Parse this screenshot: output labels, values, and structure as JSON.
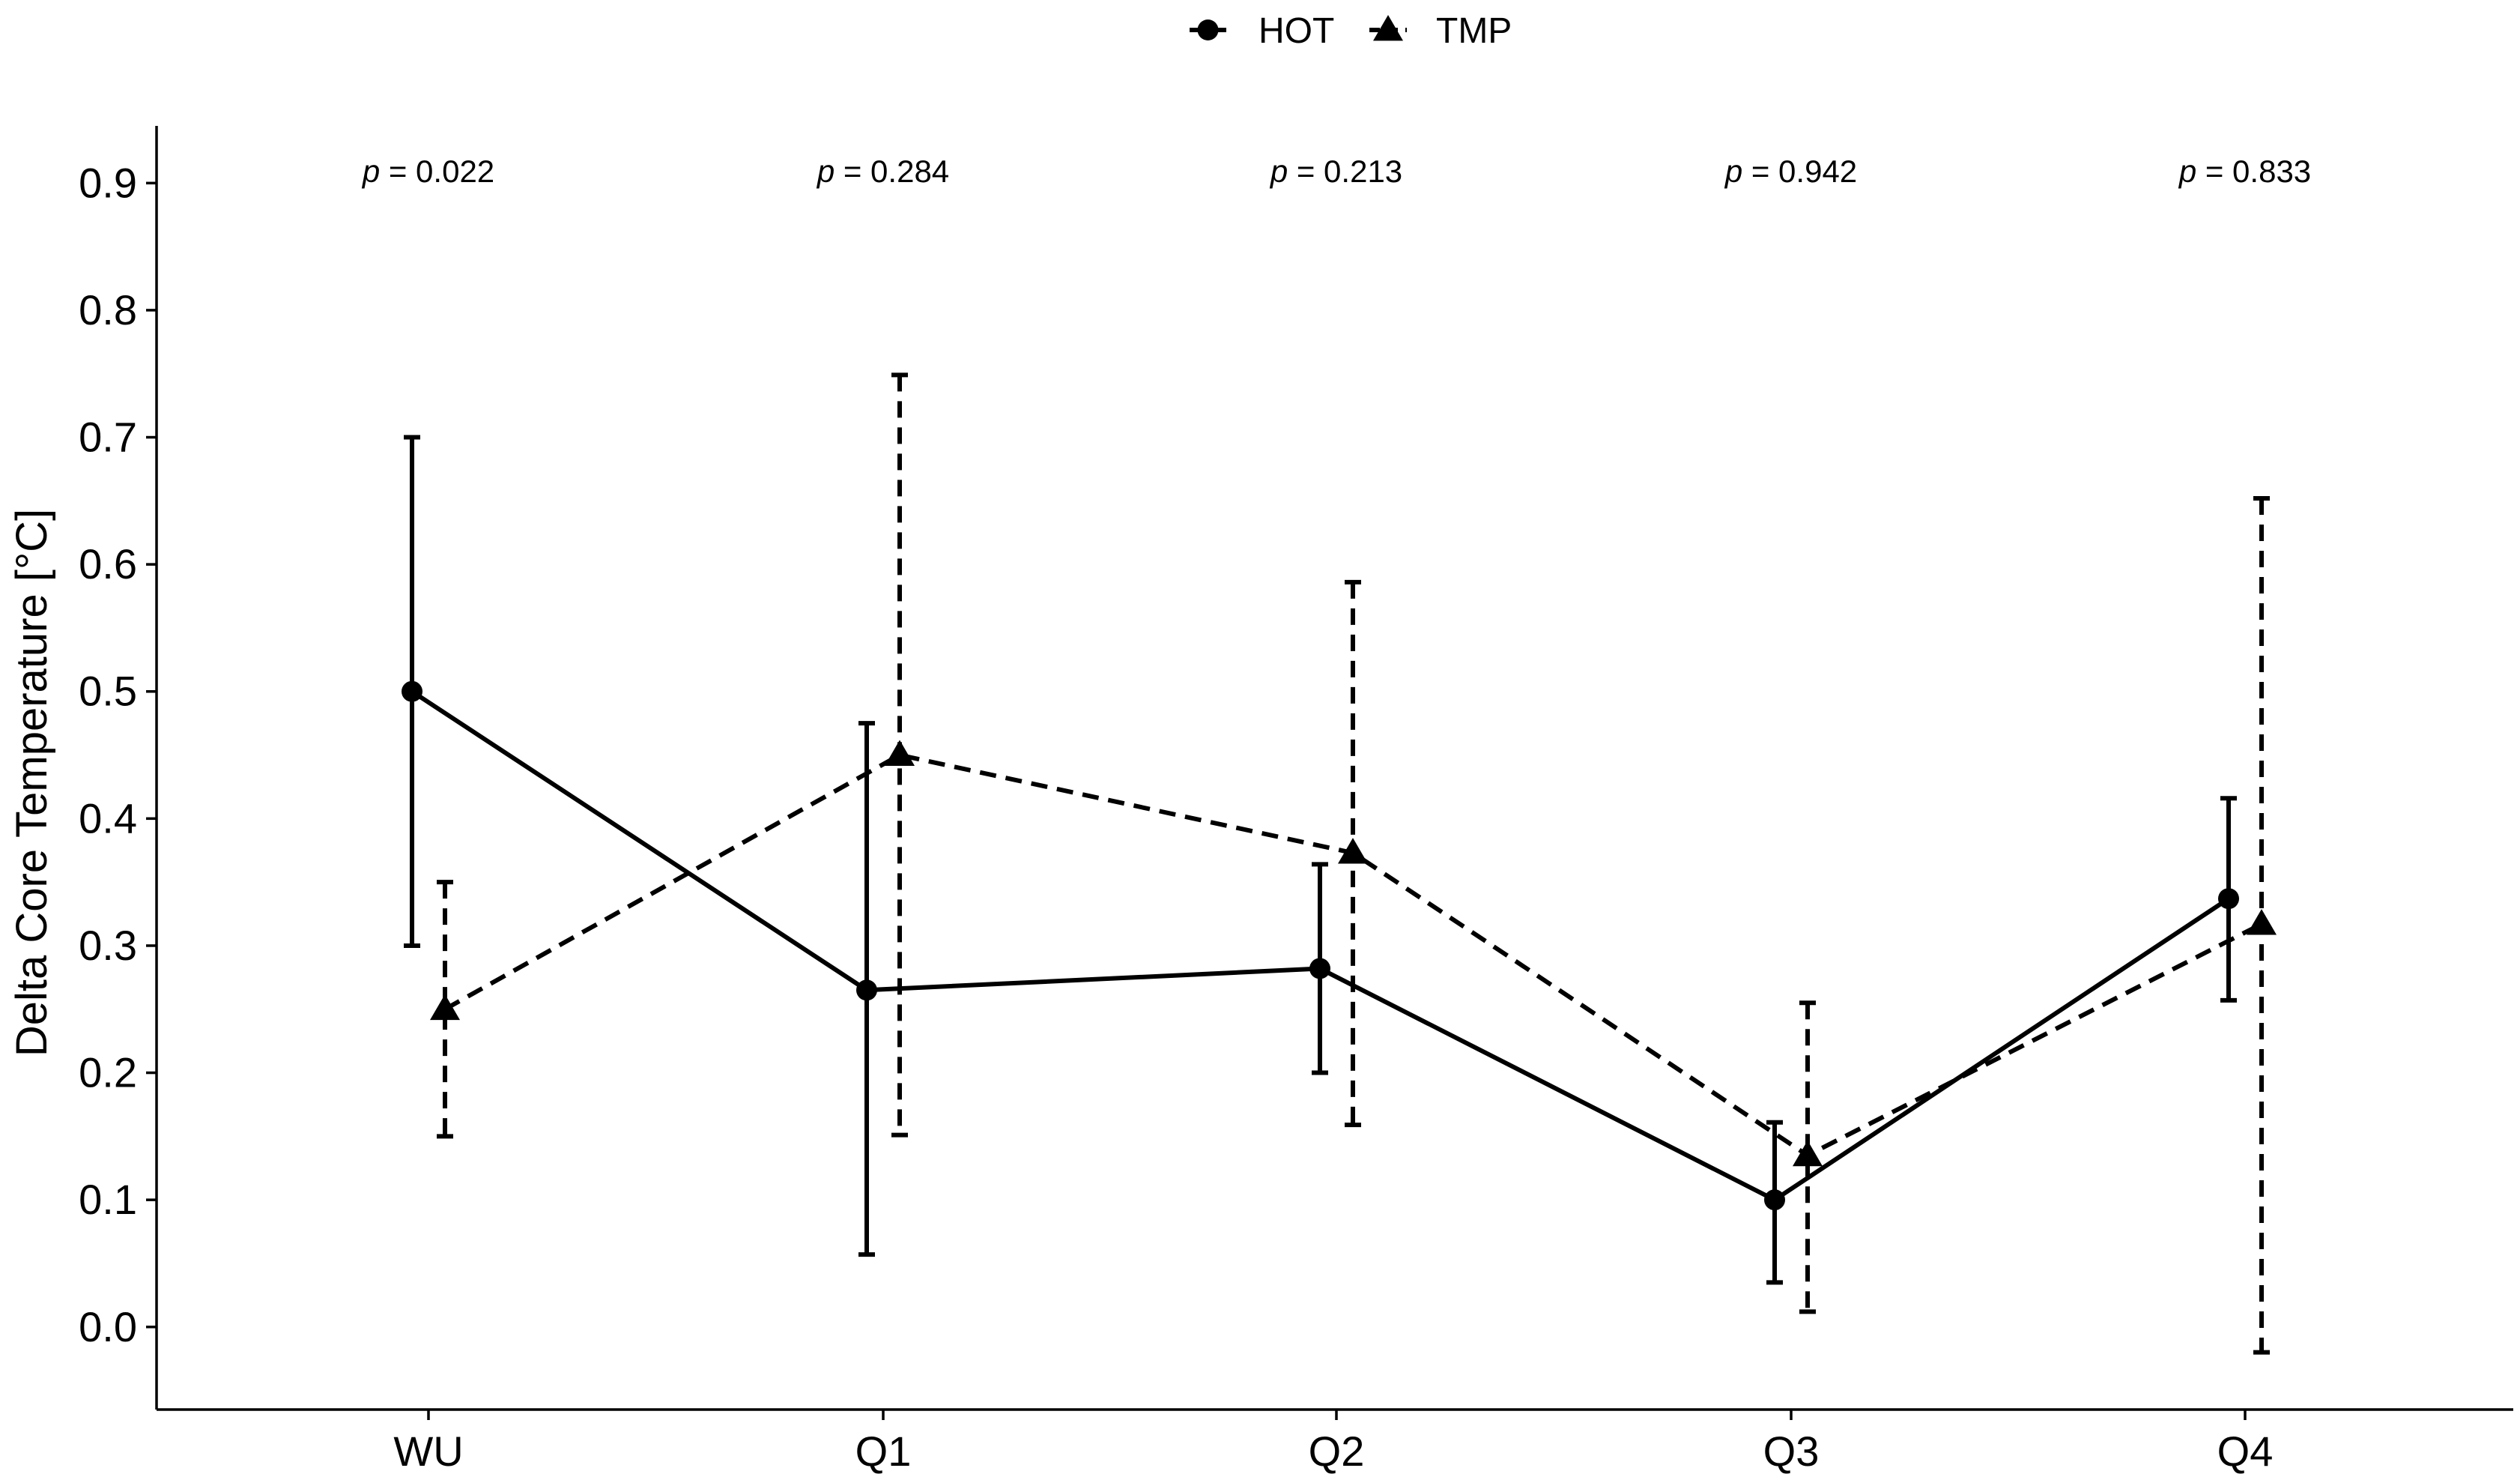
{
  "chart_data": {
    "type": "line",
    "title": "",
    "xlabel": "",
    "ylabel": "Delta Core Temperature [°C]",
    "categories": [
      "WU",
      "Q1",
      "Q2",
      "Q3",
      "Q4"
    ],
    "ylim": [
      -0.065,
      0.945
    ],
    "yticks": [
      "0.0",
      "0.1",
      "0.2",
      "0.3",
      "0.4",
      "0.5",
      "0.6",
      "0.7",
      "0.8",
      "0.9"
    ],
    "grid": false,
    "legend_position": "top",
    "series": [
      {
        "name": "HOT",
        "marker": "circle",
        "linestyle": "solid",
        "color": "#000000",
        "values": [
          0.5,
          0.265,
          0.282,
          0.1,
          0.337
        ],
        "err_low": [
          0.3,
          0.057,
          0.2,
          0.035,
          0.257
        ],
        "err_high": [
          0.7,
          0.475,
          0.364,
          0.161,
          0.416
        ]
      },
      {
        "name": "TMP",
        "marker": "triangle",
        "linestyle": "dashed",
        "color": "#000000",
        "values": [
          0.25,
          0.45,
          0.373,
          0.135,
          0.317
        ],
        "err_low": [
          0.15,
          0.151,
          0.159,
          0.012,
          -0.02
        ],
        "err_high": [
          0.35,
          0.749,
          0.586,
          0.255,
          0.652
        ]
      }
    ],
    "annotations": [
      {
        "category": "WU",
        "p": "p",
        "text": " = 0.022"
      },
      {
        "category": "Q1",
        "p": "p",
        "text": " = 0.284"
      },
      {
        "category": "Q2",
        "p": "p",
        "text": " = 0.213"
      },
      {
        "category": "Q3",
        "p": "p",
        "text": " = 0.942"
      },
      {
        "category": "Q4",
        "p": "p",
        "text": " = 0.833"
      }
    ]
  }
}
